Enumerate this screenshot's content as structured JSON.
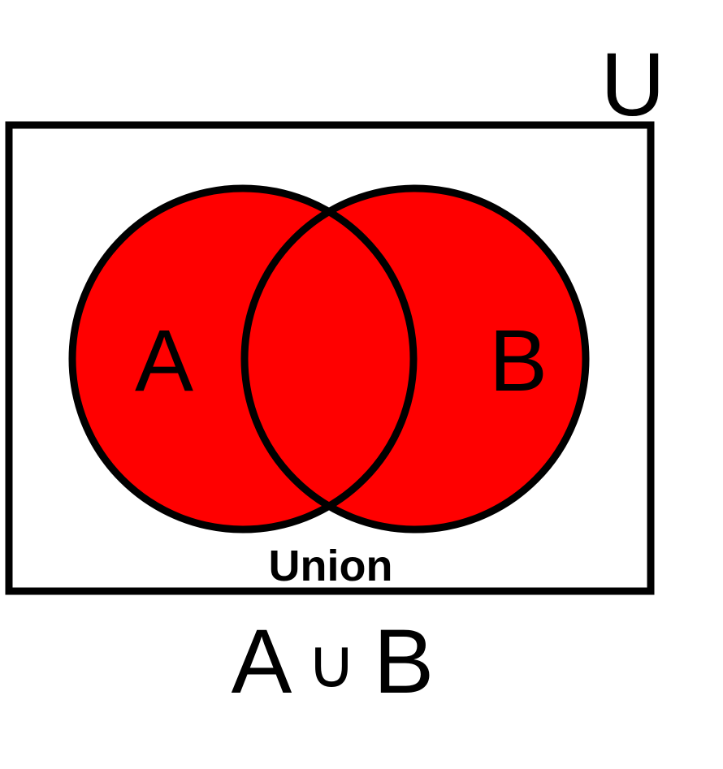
{
  "diagram": {
    "universe_label": "U",
    "set_a_label": "A",
    "set_b_label": "B",
    "region_caption": "Union",
    "formula": {
      "left": "A",
      "operator": "∪",
      "right": "B"
    }
  },
  "colors": {
    "fill": "#ff0000",
    "stroke": "#000000",
    "background": "#ffffff"
  }
}
